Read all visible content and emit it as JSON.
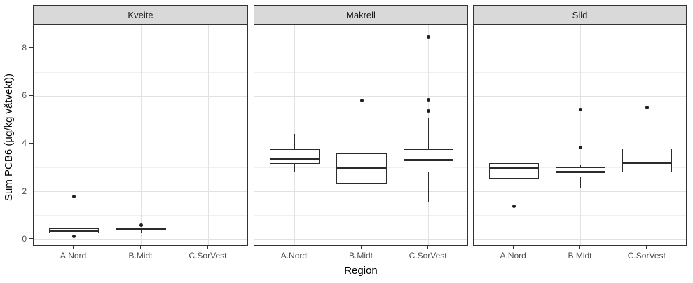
{
  "figure": {
    "y_axis": {
      "title": "Sum PCB6 (µg/kg våtvekt))",
      "tick_labels": [
        "0",
        "2",
        "4",
        "6",
        "8"
      ],
      "tick_values": [
        0,
        2,
        4,
        6,
        8
      ]
    },
    "x_axis": {
      "title": "Region",
      "categories": [
        "A.Nord",
        "B.Midt",
        "C.SorVest"
      ]
    },
    "facet_labels": [
      "Kveite",
      "Makrell",
      "Sild"
    ]
  },
  "chart_data": {
    "type": "boxplot",
    "title": "",
    "xlabel": "Region",
    "ylabel": "Sum PCB6 (µg/kg våtvekt))",
    "ylim": [
      -0.3,
      9.0
    ],
    "y_ticks": [
      0,
      2,
      4,
      6,
      8
    ],
    "y_minor_ticks": [
      1,
      3,
      5,
      7
    ],
    "grid": "horizontal major+minor gridlines; vertical major gridline at each category",
    "legend": "none",
    "categories": [
      "A.Nord",
      "B.Midt",
      "C.SorVest"
    ],
    "facets": [
      {
        "label": "Kveite",
        "boxes": [
          {
            "category": "A.Nord",
            "lower_whisker": 0.22,
            "q1": 0.26,
            "median": 0.36,
            "q3": 0.46,
            "upper_whisker": 0.5,
            "outliers": [
              1.8,
              0.13
            ]
          },
          {
            "category": "B.Midt",
            "lower_whisker": 0.27,
            "q1": 0.36,
            "median": 0.42,
            "q3": 0.48,
            "upper_whisker": 0.5,
            "outliers": [
              0.58
            ]
          },
          {
            "category": "C.SorVest",
            "no_data": true,
            "outliers": []
          }
        ]
      },
      {
        "label": "Makrell",
        "boxes": [
          {
            "category": "A.Nord",
            "lower_whisker": 2.83,
            "q1": 3.15,
            "median": 3.38,
            "q3": 3.76,
            "upper_whisker": 4.4,
            "outliers": []
          },
          {
            "category": "B.Midt",
            "lower_whisker": 2.0,
            "q1": 2.34,
            "median": 3.0,
            "q3": 3.6,
            "upper_whisker": 4.92,
            "outliers": [
              5.82
            ]
          },
          {
            "category": "C.SorVest",
            "lower_whisker": 1.58,
            "q1": 2.81,
            "median": 3.32,
            "q3": 3.78,
            "upper_whisker": 5.1,
            "outliers": [
              8.48,
              5.84,
              5.38
            ]
          }
        ]
      },
      {
        "label": "Sild",
        "boxes": [
          {
            "category": "A.Nord",
            "lower_whisker": 1.75,
            "q1": 2.54,
            "median": 2.99,
            "q3": 3.2,
            "upper_whisker": 3.93,
            "outliers": [
              1.38
            ]
          },
          {
            "category": "B.Midt",
            "lower_whisker": 2.14,
            "q1": 2.61,
            "median": 2.82,
            "q3": 3.02,
            "upper_whisker": 3.1,
            "outliers": [
              5.43,
              3.84
            ]
          },
          {
            "category": "C.SorVest",
            "lower_whisker": 2.4,
            "q1": 2.81,
            "median": 3.21,
            "q3": 3.8,
            "upper_whisker": 4.55,
            "outliers": [
              5.51
            ]
          }
        ]
      }
    ]
  },
  "colors": {
    "strip_fill": "#d9d9d9",
    "strip_border": "#333333",
    "panel_border": "#333333",
    "grid_major": "#e2e2e2",
    "grid_minor": "#f0f0f0",
    "box_stroke": "#2b2b2b",
    "outlier_point": "#1f1f1f",
    "tick_label_text": "#4d4d4d",
    "axis_title_text": "#000000",
    "strip_text": "#1a1a1a"
  }
}
